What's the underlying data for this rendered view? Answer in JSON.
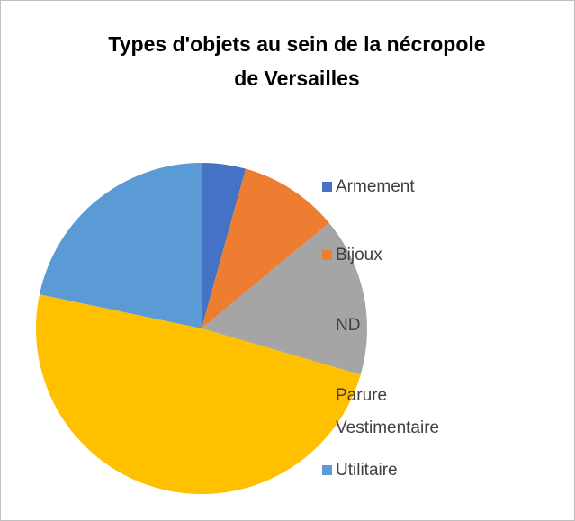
{
  "chart_data": {
    "type": "pie",
    "title": "Types d'objets au sein de la nécropole de Versailles",
    "categories": [
      "Armement",
      "Bijoux",
      "ND",
      "Parure Vestimentaire",
      "Utilitaire"
    ],
    "values": [
      4.3,
      9.7,
      15.5,
      48.8,
      21.7
    ],
    "colors": [
      "#4472c4",
      "#ed7d31",
      "#a5a5a5",
      "#ffc000",
      "#5b9bd5"
    ],
    "legend": "right"
  }
}
